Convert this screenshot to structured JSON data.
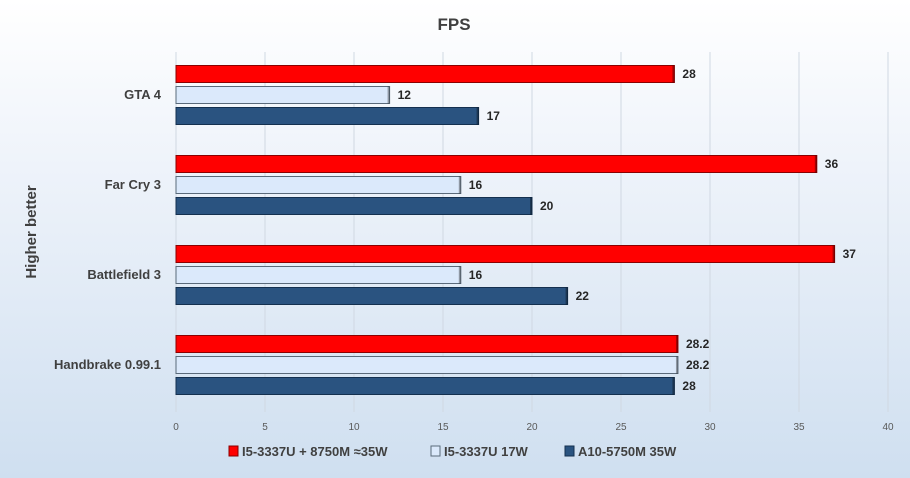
{
  "chart_data": {
    "type": "bar",
    "orientation": "horizontal",
    "title": "FPS",
    "ylabel": "Higher better",
    "xlabel": "",
    "xlim": [
      0,
      40
    ],
    "xticks": [
      0,
      5,
      10,
      15,
      20,
      25,
      30,
      35,
      40
    ],
    "grid": true,
    "legend_position": "bottom",
    "categories": [
      "GTA 4",
      "Far Cry 3",
      "Battlefield 3",
      "Handbrake 0.99.1"
    ],
    "series": [
      {
        "name": "I5-3337U + 8750M ≈35W",
        "color": "#ff0000",
        "values": [
          28,
          36,
          37,
          28.2
        ],
        "labels": [
          "28",
          "36",
          "37",
          "28.2"
        ]
      },
      {
        "name": "I5-3337U 17W",
        "color": "#dbe9fb",
        "values": [
          12,
          16,
          16,
          28.2
        ],
        "labels": [
          "12",
          "16",
          "16",
          "28.2"
        ]
      },
      {
        "name": "A10-5750M 35W",
        "color": "#2a5380",
        "values": [
          17,
          20,
          22,
          28
        ],
        "labels": [
          "17",
          "20",
          "22",
          "28"
        ]
      }
    ]
  }
}
